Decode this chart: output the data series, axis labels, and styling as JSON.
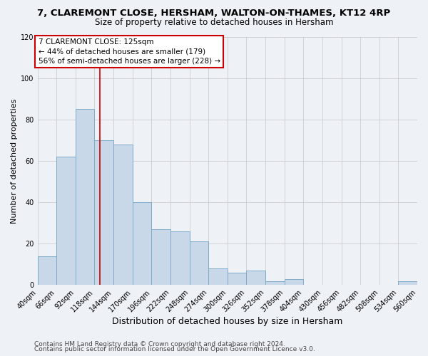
{
  "title": "7, CLAREMONT CLOSE, HERSHAM, WALTON-ON-THAMES, KT12 4RP",
  "subtitle": "Size of property relative to detached houses in Hersham",
  "xlabel": "Distribution of detached houses by size in Hersham",
  "ylabel": "Number of detached properties",
  "bar_values": [
    14,
    62,
    85,
    70,
    68,
    40,
    27,
    26,
    21,
    8,
    6,
    7,
    2,
    3,
    0,
    0,
    0,
    0,
    0,
    2
  ],
  "bin_edges": [
    40,
    66,
    92,
    118,
    144,
    170,
    196,
    222,
    248,
    274,
    300,
    326,
    352,
    378,
    404,
    430,
    456,
    482,
    508,
    534,
    560
  ],
  "tick_labels": [
    "40sqm",
    "66sqm",
    "92sqm",
    "118sqm",
    "144sqm",
    "170sqm",
    "196sqm",
    "222sqm",
    "248sqm",
    "274sqm",
    "300sqm",
    "326sqm",
    "352sqm",
    "378sqm",
    "404sqm",
    "430sqm",
    "456sqm",
    "482sqm",
    "508sqm",
    "534sqm",
    "560sqm"
  ],
  "bar_color": "#c8d8e8",
  "bar_edge_color": "#7eaac8",
  "property_line_x": 125,
  "ylim": [
    0,
    120
  ],
  "yticks": [
    0,
    20,
    40,
    60,
    80,
    100,
    120
  ],
  "annotation_title": "7 CLAREMONT CLOSE: 125sqm",
  "annotation_line1": "← 44% of detached houses are smaller (179)",
  "annotation_line2": "56% of semi-detached houses are larger (228) →",
  "annotation_box_color": "#ffffff",
  "annotation_box_edge_color": "#cc0000",
  "vline_color": "#cc0000",
  "grid_color": "#cccccc",
  "footnote1": "Contains HM Land Registry data © Crown copyright and database right 2024.",
  "footnote2": "Contains public sector information licensed under the Open Government Licence v3.0.",
  "background_color": "#eef2f7",
  "title_fontsize": 9.5,
  "subtitle_fontsize": 8.5,
  "xlabel_fontsize": 9,
  "ylabel_fontsize": 8,
  "tick_fontsize": 7,
  "annotation_fontsize": 7.5,
  "footnote_fontsize": 6.5
}
